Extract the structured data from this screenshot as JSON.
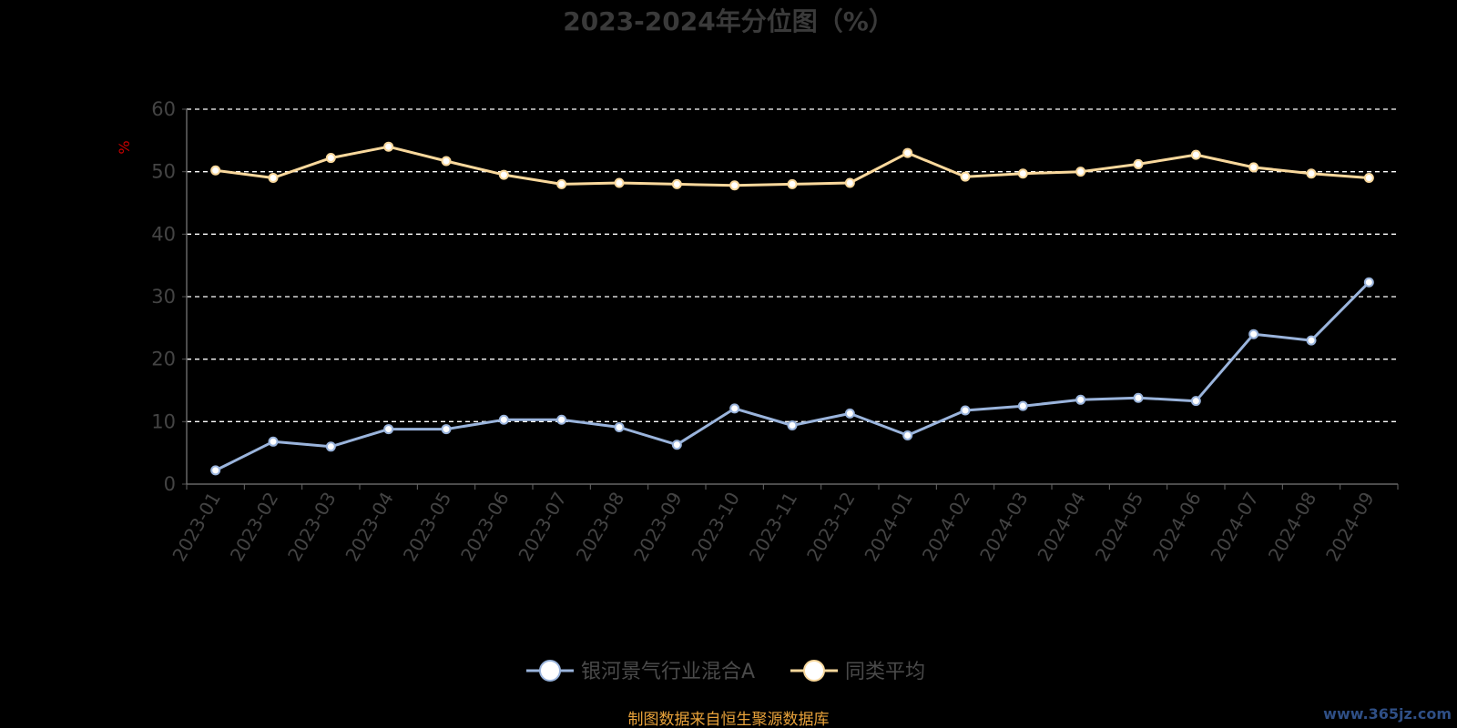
{
  "chart_data": {
    "type": "line",
    "title": "2023-2024年分位图（%）",
    "ylabel": "%",
    "xlabel": "",
    "ylim": [
      0,
      60
    ],
    "yticks": [
      0,
      10,
      20,
      30,
      40,
      50,
      60
    ],
    "grid": true,
    "legend_position": "bottom",
    "categories": [
      "2023-01",
      "2023-02",
      "2023-03",
      "2023-04",
      "2023-05",
      "2023-06",
      "2023-07",
      "2023-08",
      "2023-09",
      "2023-10",
      "2023-11",
      "2023-12",
      "2024-01",
      "2024-02",
      "2024-03",
      "2024-04",
      "2024-05",
      "2024-06",
      "2024-07",
      "2024-08",
      "2024-09"
    ],
    "series": [
      {
        "name": "银河景气行业混合A",
        "color": "#9ab4dc",
        "values": [
          2.2,
          6.8,
          6.0,
          8.8,
          8.8,
          10.3,
          10.3,
          9.1,
          6.3,
          12.1,
          9.4,
          11.3,
          7.8,
          11.8,
          12.5,
          13.5,
          13.8,
          13.3,
          24.0,
          23.0,
          32.3
        ]
      },
      {
        "name": "同类平均",
        "color": "#f9d89c",
        "values": [
          50.2,
          49.0,
          52.2,
          54.0,
          51.7,
          49.5,
          48.0,
          48.2,
          48.0,
          47.8,
          48.0,
          48.2,
          53.0,
          49.2,
          49.7,
          50.0,
          51.2,
          52.7,
          50.7,
          49.7,
          49.0
        ]
      }
    ]
  },
  "footer": {
    "source": "制图数据来自恒生聚源数据库",
    "watermark": "www.365jz.com"
  }
}
